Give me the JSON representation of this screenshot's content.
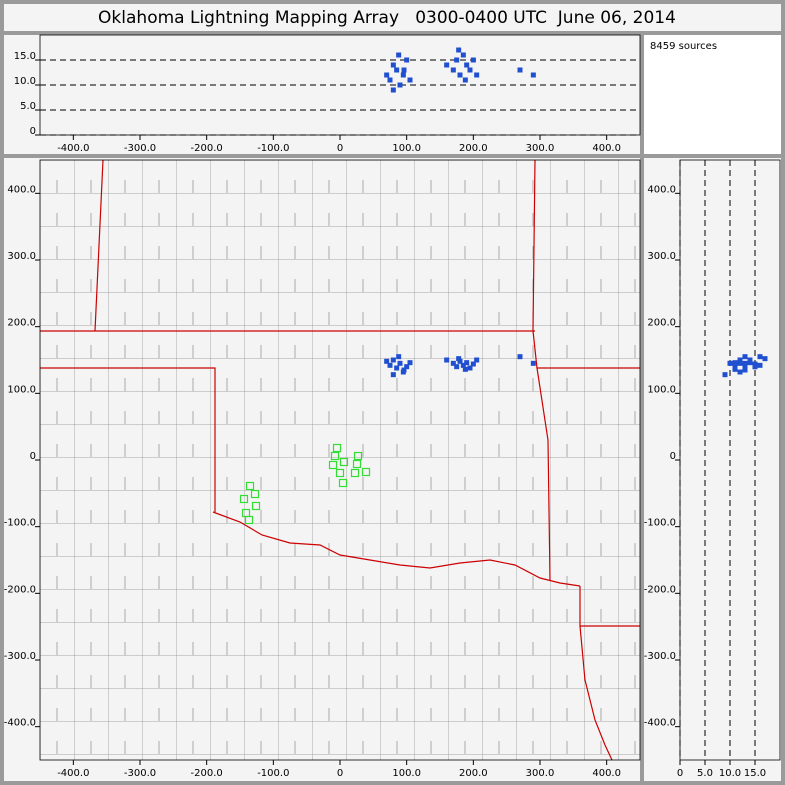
{
  "title": "Oklahoma Lightning Mapping Array   0300-0400 UTC  June 06, 2014",
  "source_count_label": "8459 sources",
  "chart_data": [
    {
      "type": "scatter",
      "xlim": [
        -450,
        450
      ],
      "ylim": [
        0,
        20
      ],
      "xticks": [
        {
          "value": -400,
          "label": "-400.0"
        },
        {
          "value": -300,
          "label": "-300.0"
        },
        {
          "value": -200,
          "label": "-200.0"
        },
        {
          "value": -100,
          "label": "-100.0"
        },
        0,
        {
          "value": 100,
          "label": "100.0"
        },
        {
          "value": 200,
          "label": "200.0"
        },
        {
          "value": 300,
          "label": "300.0"
        },
        {
          "value": 400,
          "label": "400.0"
        }
      ],
      "yticks": [
        0,
        {
          "value": 5,
          "label": "5.0"
        },
        {
          "value": 10,
          "label": "10.0"
        },
        {
          "value": 15,
          "label": "15.0"
        }
      ],
      "grid": "y",
      "series": [
        {
          "color": "#2050d0",
          "marker": "dot",
          "x": [
            70,
            75,
            80,
            85,
            90,
            95,
            100,
            105,
            80,
            88,
            96,
            160,
            170,
            175,
            180,
            185,
            190,
            195,
            200,
            205,
            178,
            188,
            270,
            290
          ],
          "y": [
            12,
            11,
            14,
            13,
            10,
            12,
            15,
            11,
            9,
            16,
            13,
            14,
            13,
            15,
            12,
            16,
            14,
            13,
            15,
            12,
            17,
            11,
            13,
            12
          ]
        }
      ]
    },
    {
      "type": "scatter",
      "xlim": [
        -450,
        450
      ],
      "ylim": [
        -450,
        450
      ],
      "xticks": [
        {
          "value": -400,
          "label": "-400.0"
        },
        {
          "value": -300,
          "label": "-300.0"
        },
        {
          "value": -200,
          "label": "-200.0"
        },
        {
          "value": -100,
          "label": "-100.0"
        },
        0,
        {
          "value": 100,
          "label": "100.0"
        },
        {
          "value": 200,
          "label": "200.0"
        },
        {
          "value": 300,
          "label": "300.0"
        },
        {
          "value": 400,
          "label": "400.0"
        }
      ],
      "yticks": [
        {
          "value": 400,
          "label": "400.0"
        },
        {
          "value": 300,
          "label": "300.0"
        },
        {
          "value": 200,
          "label": "200.0"
        },
        {
          "value": 100,
          "label": "100.0"
        },
        0,
        {
          "value": -100,
          "label": "-100.0"
        },
        {
          "value": -200,
          "label": "-200.0"
        },
        {
          "value": -300,
          "label": "-300.0"
        },
        {
          "value": -400,
          "label": "-400.0"
        }
      ],
      "series": [
        {
          "color": "#2050d0",
          "marker": "dot",
          "x": [
            70,
            75,
            80,
            85,
            90,
            95,
            100,
            105,
            80,
            88,
            96,
            160,
            170,
            175,
            180,
            185,
            190,
            195,
            200,
            205,
            178,
            188,
            270,
            290
          ],
          "y": [
            148,
            142,
            150,
            138,
            145,
            132,
            140,
            146,
            128,
            155,
            135,
            150,
            145,
            140,
            148,
            142,
            146,
            138,
            144,
            150,
            152,
            136,
            155,
            145
          ]
        },
        {
          "color": "#33dd33",
          "marker": "square-open",
          "x": [
            -4.5,
            -7.5,
            6,
            -10.5,
            27,
            25.5,
            39,
            22.5,
            0,
            4.5,
            -135,
            -127.5,
            -144,
            -126,
            -141,
            -136.5
          ],
          "y": [
            18,
            6,
            -3,
            -7.5,
            6,
            -6,
            -18,
            -19.5,
            -19.5,
            -34.5,
            -39,
            -51,
            -58.5,
            -69,
            -79.5,
            -90
          ]
        }
      ]
    },
    {
      "type": "scatter",
      "xlim": [
        0,
        20
      ],
      "ylim": [
        -450,
        450
      ],
      "xticks": [
        0,
        {
          "value": 5,
          "label": "5.0"
        },
        {
          "value": 10,
          "label": "10.0"
        },
        {
          "value": 15,
          "label": "15.0"
        }
      ],
      "yticks": [
        {
          "value": 400,
          "label": "400.0"
        },
        {
          "value": 300,
          "label": "300.0"
        },
        {
          "value": 200,
          "label": "200.0"
        },
        {
          "value": 100,
          "label": "100.0"
        },
        0,
        {
          "value": -100,
          "label": "-100.0"
        },
        {
          "value": -200,
          "label": "-200.0"
        },
        {
          "value": -300,
          "label": "-300.0"
        },
        {
          "value": -400,
          "label": "-400.0"
        }
      ],
      "grid": "x",
      "series": [
        {
          "color": "#2050d0",
          "marker": "dot",
          "x": [
            12,
            11,
            14,
            13,
            10,
            12,
            15,
            11,
            9,
            16,
            13,
            14,
            13,
            15,
            12,
            16,
            14,
            13,
            15,
            12,
            17,
            11,
            13,
            12
          ],
          "y": [
            148,
            142,
            150,
            138,
            145,
            132,
            140,
            146,
            128,
            155,
            135,
            150,
            145,
            140,
            148,
            142,
            146,
            138,
            144,
            150,
            152,
            136,
            155,
            145
          ]
        }
      ]
    }
  ]
}
